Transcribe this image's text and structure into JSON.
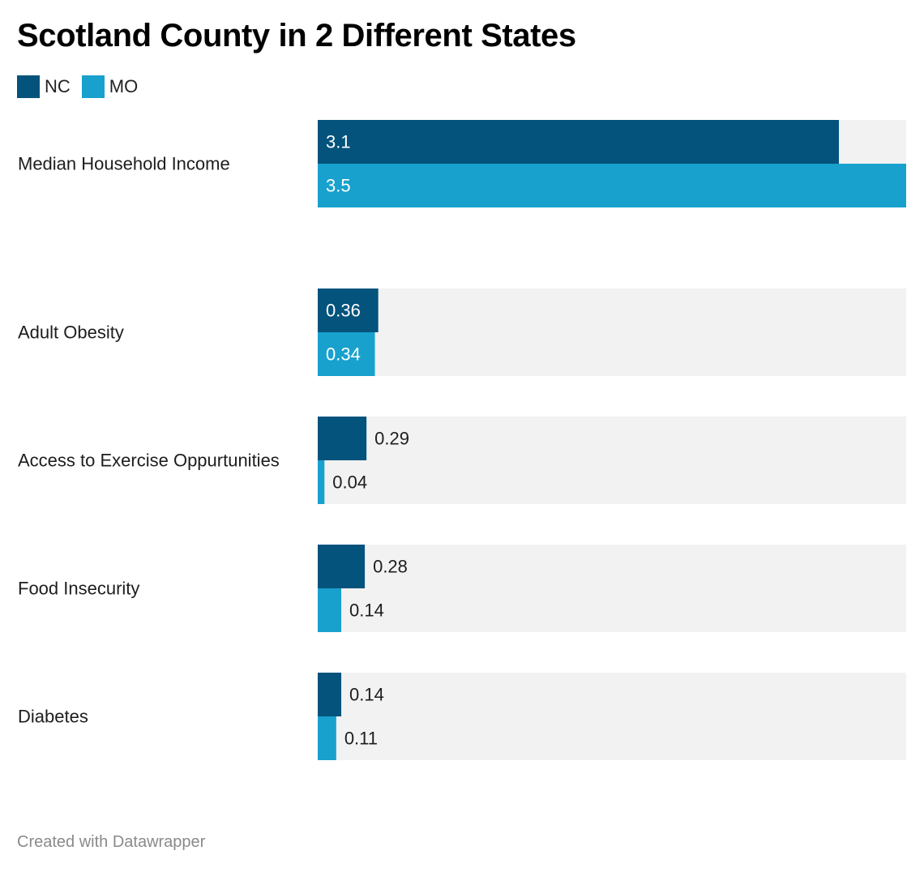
{
  "chart_data": {
    "type": "bar",
    "orientation": "horizontal",
    "title": "Scotland County in 2 Different States",
    "categories": [
      "Median Household Income",
      "Adult Obesity",
      "Access to Exercise Oppurtunities",
      "Food Insecurity",
      "Diabetes"
    ],
    "series": [
      {
        "name": "NC",
        "color": "#03537c",
        "values": [
          3.1,
          0.36,
          0.29,
          0.28,
          0.14
        ],
        "labels": [
          "3.1",
          "0.36",
          "0.29",
          "0.28",
          "0.14"
        ]
      },
      {
        "name": "MO",
        "color": "#18a1cd",
        "values": [
          3.5,
          0.34,
          0.04,
          0.14,
          0.11
        ],
        "labels": [
          "3.5",
          "0.34",
          "0.04",
          "0.14",
          "0.11"
        ]
      }
    ],
    "grouping": [
      {
        "categories": [
          "Median Household Income"
        ],
        "max": 3.5
      },
      {
        "categories": [
          "Adult Obesity",
          "Access to Exercise Oppurtunities",
          "Food Insecurity",
          "Diabetes"
        ],
        "max": 3.5
      }
    ],
    "legend_position": "top-left",
    "background_bar_color": "#f2f2f2",
    "grid": false
  },
  "footer": {
    "credit": "Created with Datawrapper"
  }
}
